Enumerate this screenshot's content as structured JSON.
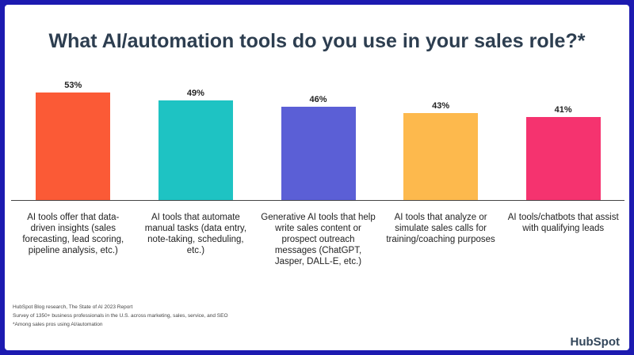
{
  "chart_data": {
    "type": "bar",
    "title": "What AI/automation tools do you use in your sales role?*",
    "categories": [
      "AI tools offer that data-driven insights (sales forecasting, lead scoring, pipeline analysis, etc.)",
      "AI tools that automate manual tasks (data entry, note-taking, scheduling, etc.)",
      "Generative AI tools that help write sales content or prospect outreach messages (ChatGPT, Jasper, DALL-E, etc.)",
      "AI tools that analyze or simulate sales calls for training/coaching purposes",
      "AI tools/chatbots that assist with qualifying leads"
    ],
    "values": [
      53,
      49,
      46,
      43,
      41
    ],
    "value_labels": [
      "53%",
      "49%",
      "46%",
      "43%",
      "41%"
    ],
    "colors": [
      "#fb5a36",
      "#1ec3c3",
      "#5b5fd6",
      "#fdb94d",
      "#f5336f"
    ],
    "notes": [
      "HubSpot Blog research, The State of AI 2023 Report",
      "Survey of 1350+ business professionals in the U.S. across marketing, sales, service, and SEO",
      "*Among sales pros using AI/automation"
    ],
    "logo": "HubSpot"
  }
}
